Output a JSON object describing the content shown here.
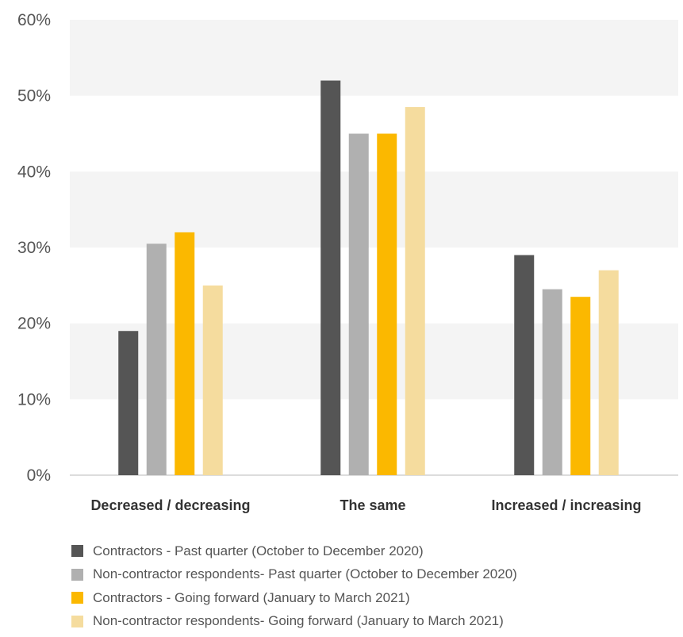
{
  "chart_data": {
    "type": "bar",
    "categories": [
      "Decreased / decreasing",
      "The same",
      "Increased / increasing"
    ],
    "series": [
      {
        "name": "Contractors - Past quarter (October to December 2020)",
        "color": "#555555",
        "values": [
          19,
          52,
          29
        ]
      },
      {
        "name": "Non-contractor respondents- Past quarter (October to December 2020)",
        "color": "#b0b0b0",
        "values": [
          30.5,
          45,
          24.5
        ]
      },
      {
        "name": "Contractors - Going forward (January to March 2021)",
        "color": "#fbb800",
        "values": [
          32,
          45,
          23.5
        ]
      },
      {
        "name": "Non-contractor respondents- Going forward (January to March 2021)",
        "color": "#f5dc9e",
        "values": [
          25,
          48.5,
          27
        ]
      }
    ],
    "ylim": [
      0,
      60
    ],
    "yticks": [
      0,
      10,
      20,
      30,
      40,
      50,
      60
    ],
    "ytick_labels": [
      "0%",
      "10%",
      "20%",
      "30%",
      "40%",
      "50%",
      "60%"
    ],
    "grid": "alternating horizontal bands",
    "legend_position": "bottom"
  }
}
